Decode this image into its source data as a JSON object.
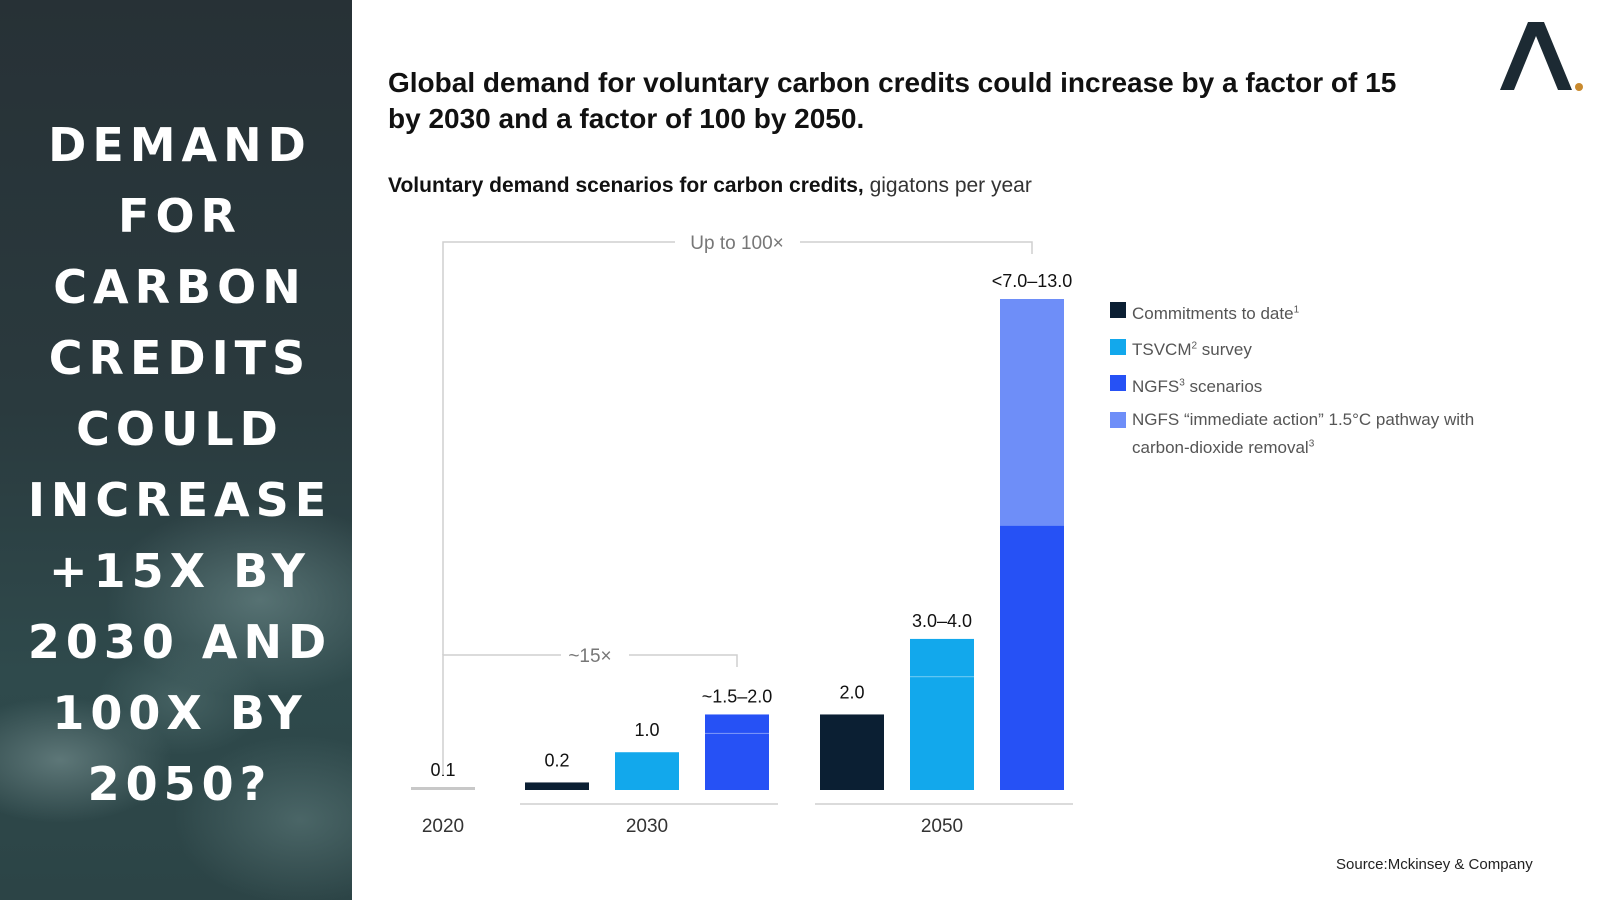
{
  "left_panel": {
    "title": "DEMAND FOR CARBON CREDITS COULD INCREASE +15X BY 2030 AND 100X BY 2050?"
  },
  "logo": {
    "name": "a-logo-icon",
    "color": "#1c2a33",
    "dot_color": "#c98a2e"
  },
  "headline": "Global demand for voluntary carbon credits could increase by a factor of 15 by 2030 and a factor of 100 by 2050.",
  "subhead": {
    "bold": "Voluntary demand scenarios for carbon credits,",
    "unit": " gigatons per year"
  },
  "source": "Source:Mckinsey & Company",
  "legend": [
    {
      "label": "Commitments to date",
      "sup": "1",
      "color": "#0b1f33"
    },
    {
      "label": "TSVCM",
      "sup": "2",
      "label_after": " survey",
      "color": "#12a8ec"
    },
    {
      "label": "NGFS",
      "sup": "3",
      "label_after": " scenarios",
      "color": "#2651f5"
    },
    {
      "label": "NGFS “immediate action” 1.5°C pathway with carbon-dioxide removal",
      "sup": "3",
      "color": "#6e8ef8"
    }
  ],
  "chart_data": {
    "type": "bar",
    "title": "Voluntary demand scenarios for carbon credits, gigatons per year",
    "ylabel": "gigatons per year",
    "ylim": [
      0,
      13.0
    ],
    "grid": false,
    "legend_position": "right",
    "colors": {
      "commitments": "#0b1f33",
      "tsvcm": "#12a8ec",
      "ngfs": "#2651f5",
      "ngfs_immediate": "#6e8ef8",
      "baseline": "#c8c8c8"
    },
    "groups": [
      {
        "label": "2020",
        "bars": [
          {
            "series": "baseline",
            "value": 0.1,
            "label": "0.1"
          }
        ]
      },
      {
        "label": "2030",
        "bars": [
          {
            "series": "commitments",
            "value": 0.2,
            "label": "0.2"
          },
          {
            "series": "tsvcm",
            "value": 1.0,
            "label": "1.0"
          },
          {
            "series": "ngfs",
            "value_low": 1.5,
            "value_high": 2.0,
            "label": "~1.5–2.0"
          }
        ]
      },
      {
        "label": "2050",
        "bars": [
          {
            "series": "commitments",
            "value": 2.0,
            "label": "2.0"
          },
          {
            "series": "tsvcm",
            "value_low": 3.0,
            "value_high": 4.0,
            "label": "3.0–4.0"
          },
          {
            "series": "ngfs",
            "series_high": "ngfs_immediate",
            "value_low": 7.0,
            "value_high": 13.0,
            "label": "<7.0–13.0"
          }
        ]
      }
    ],
    "annotations": [
      {
        "text": "~15×",
        "from": "2020",
        "to": "2030"
      },
      {
        "text": "Up to 100×",
        "from": "2020",
        "to": "2050"
      }
    ]
  }
}
